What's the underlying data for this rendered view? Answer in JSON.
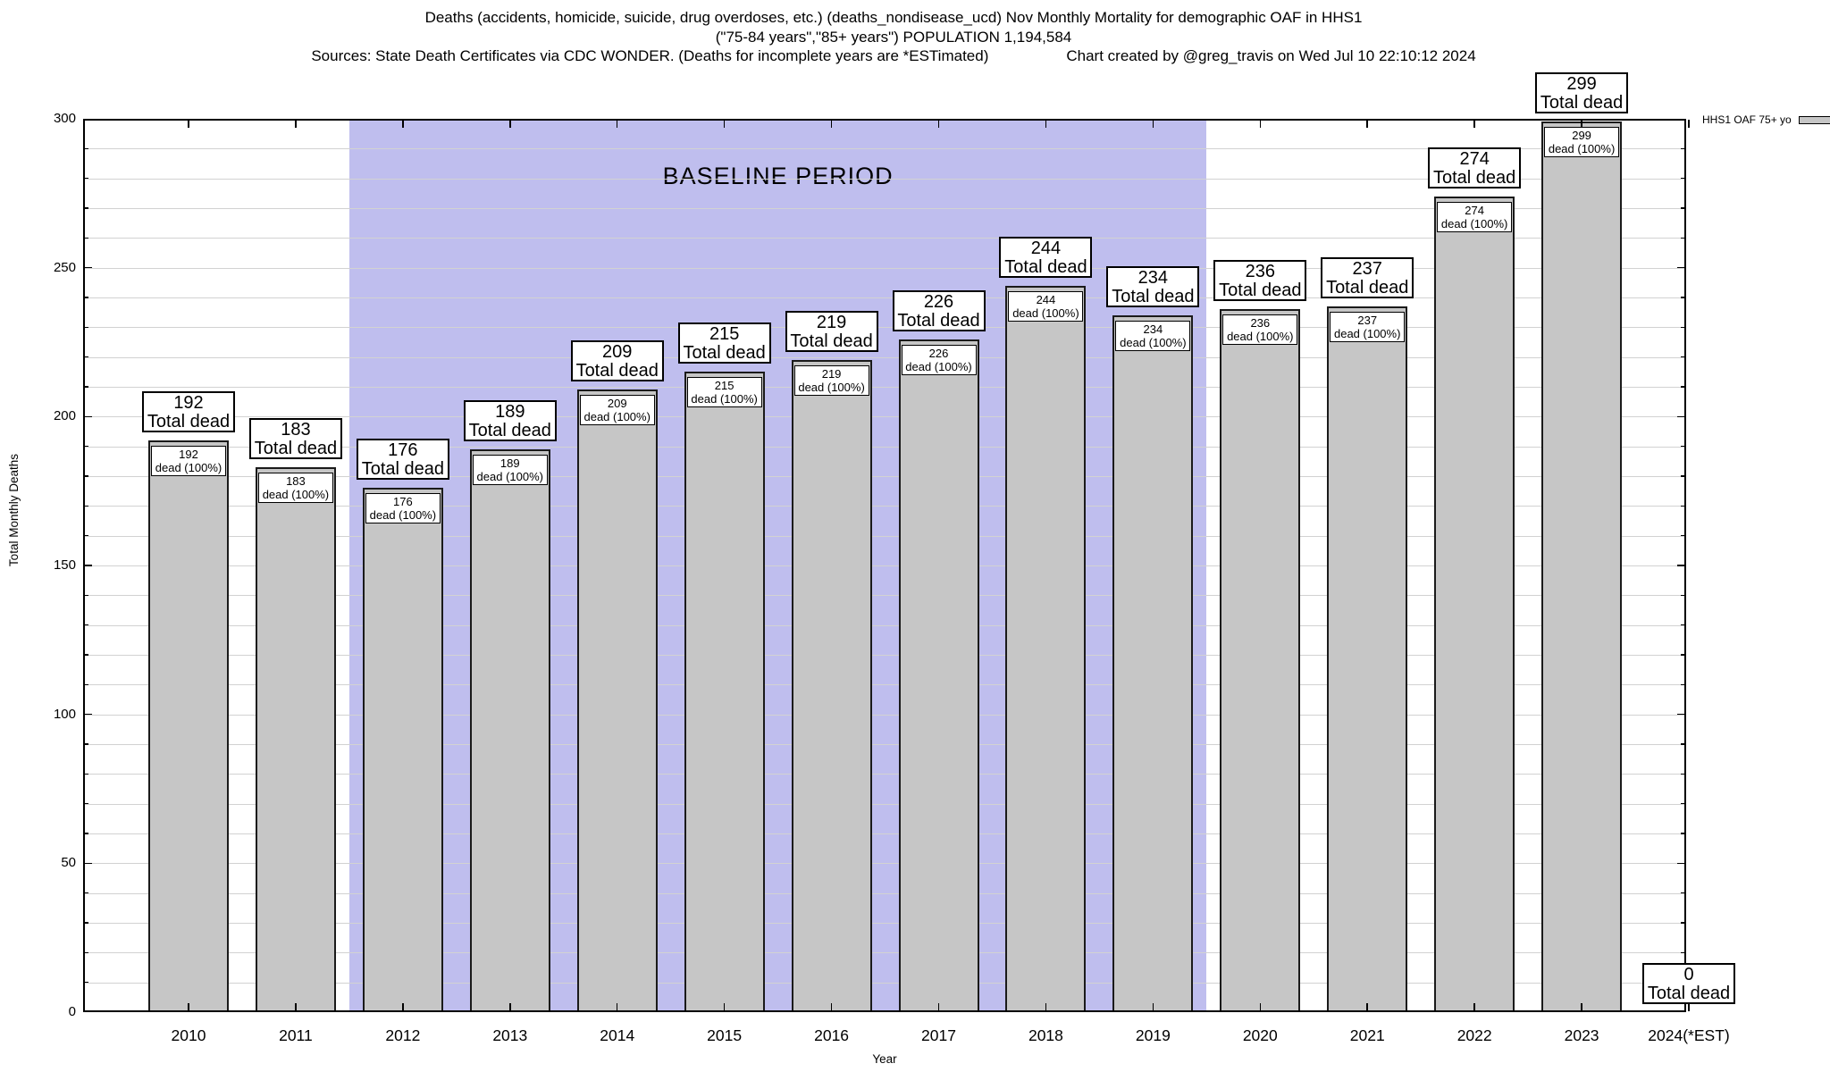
{
  "title": {
    "line1": "Deaths (accidents, homicide, suicide, drug overdoses, etc.) (deaths_nondisease_ucd) Nov Monthly Mortality for demographic OAF in HHS1",
    "line2": "(\"75-84 years\",\"85+ years\") POPULATION 1,194,584",
    "line3_left": "Sources: State Death Certificates via CDC WONDER. (Deaths for incomplete years are *ESTimated)",
    "line3_right": "Chart created by @greg_travis on Wed Jul 10 22:10:12 2024"
  },
  "legend": {
    "label": "HHS1 OAF 75+ yo"
  },
  "axes": {
    "ylabel": "Total Monthly Deaths",
    "xlabel": "Year",
    "yticks": [
      0,
      50,
      100,
      150,
      200,
      250,
      300
    ]
  },
  "baseline": {
    "label": "BASELINE PERIOD",
    "start_category": "2012",
    "end_category": "2019"
  },
  "bar_annotations": {
    "top_box_line2": "Total dead",
    "inner_box_line2": "dead (100%)"
  },
  "colors": {
    "bar_fill": "#c6c6c6",
    "bar_border": "#1a1a1a",
    "baseline_fill": "#bfbeee",
    "gridline": "#d2d2d2",
    "axis": "#000000",
    "box_background": "#ffffff"
  },
  "chart_data": {
    "type": "bar",
    "title": "Deaths (accidents, homicide, suicide, drug overdoses, etc.) (deaths_nondisease_ucd) Nov Monthly Mortality for demographic OAF in HHS1",
    "subtitle": "(\"75-84 years\",\"85+ years\") POPULATION 1,194,584",
    "categories": [
      "2010",
      "2011",
      "2012",
      "2013",
      "2014",
      "2015",
      "2016",
      "2017",
      "2018",
      "2019",
      "2020",
      "2021",
      "2022",
      "2023",
      "2024(*EST)"
    ],
    "values": [
      192,
      183,
      176,
      189,
      209,
      215,
      219,
      226,
      244,
      234,
      236,
      237,
      274,
      299,
      0
    ],
    "series": [
      {
        "name": "HHS1 OAF 75+ yo",
        "values": [
          192,
          183,
          176,
          189,
          209,
          215,
          219,
          226,
          244,
          234,
          236,
          237,
          274,
          299,
          0
        ]
      }
    ],
    "xlabel": "Year",
    "ylabel": "Total Monthly Deaths",
    "ylim": [
      0,
      300
    ],
    "ytick_step": 50,
    "grid_step": 10,
    "grid": true,
    "legend_position": "top-right",
    "baseline_period": {
      "label": "BASELINE PERIOD",
      "start": "2012",
      "end": "2019"
    }
  }
}
